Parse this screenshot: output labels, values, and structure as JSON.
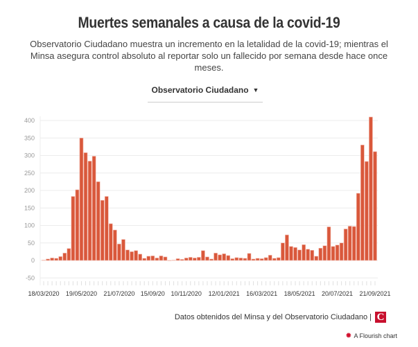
{
  "header": {
    "title": "Muertes semanales a causa de la covid-19",
    "subtitle": "Observatorio Ciudadano muestra un incremento en la letalidad de la covid-19; mientras el Minsa asegura control absoluto al reportar solo un fallecido por semana desde hace once meses."
  },
  "dropdown": {
    "selected": "Observatorio Ciudadano",
    "icon": "caret-down-icon"
  },
  "footer": {
    "source": "Datos obtenidos del Minsa y del Observatorio Ciudadano |",
    "logo_letter": "C",
    "credit": "A Flourish chart"
  },
  "chart_data": {
    "type": "bar",
    "title": "Muertes semanales a causa de la covid-19",
    "xlabel": "",
    "ylabel": "",
    "ylim": [
      -50,
      400
    ],
    "yticks": [
      400,
      350,
      300,
      250,
      200,
      150,
      100,
      50,
      0,
      -50
    ],
    "grid": true,
    "bar_color": "#d9583b",
    "x_tick_labels": [
      "18/03/2020",
      "19/05/2020",
      "21/07/2020",
      "15/09/20",
      "10/11/2020",
      "12/01/2021",
      "16/03/2021",
      "18/05/2021",
      "20/07/2021",
      "21/09/2021"
    ],
    "x_tick_indices": [
      0,
      9,
      18,
      26,
      34,
      43,
      52,
      61,
      70,
      79
    ],
    "values": [
      1,
      4,
      7,
      6,
      11,
      21,
      34,
      183,
      202,
      350,
      308,
      284,
      298,
      225,
      172,
      183,
      105,
      87,
      47,
      60,
      30,
      25,
      28,
      18,
      6,
      12,
      13,
      7,
      13,
      10,
      0,
      1,
      5,
      3,
      7,
      9,
      7,
      9,
      28,
      10,
      4,
      21,
      16,
      19,
      14,
      5,
      8,
      7,
      6,
      20,
      4,
      6,
      5,
      8,
      15,
      6,
      8,
      50,
      73,
      40,
      37,
      30,
      45,
      32,
      29,
      12,
      35,
      42,
      96,
      40,
      44,
      50,
      90,
      98,
      97,
      192,
      330,
      283,
      410,
      311
    ]
  }
}
